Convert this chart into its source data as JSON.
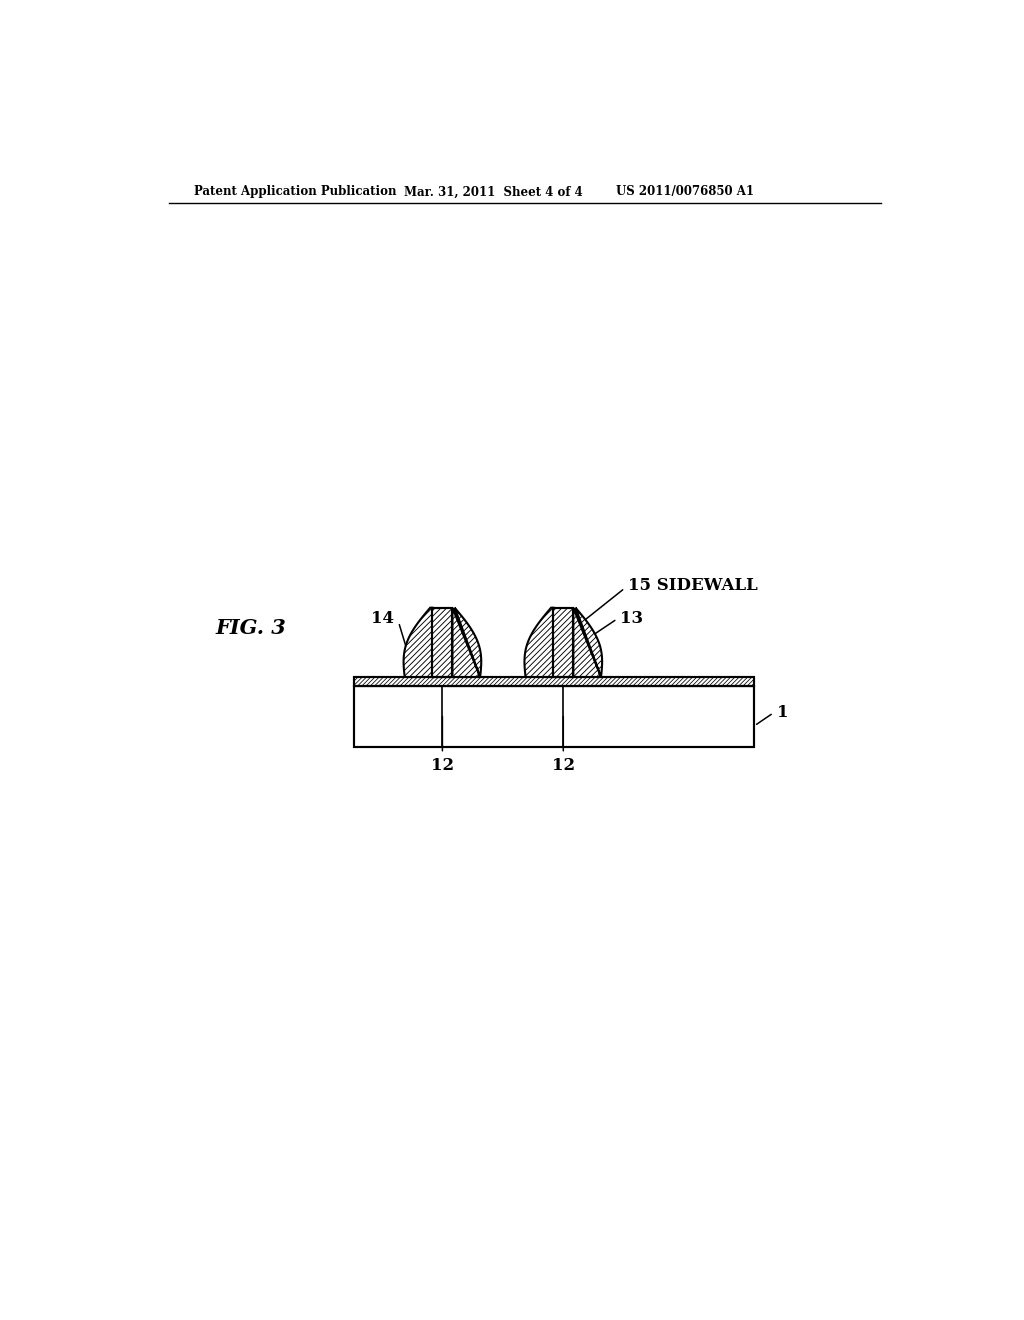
{
  "header_left": "Patent Application Publication",
  "header_center": "Mar. 31, 2011  Sheet 4 of 4",
  "header_right": "US 2011/0076850 A1",
  "fig_label": "FIG. 3",
  "label_1": "1",
  "label_12a": "12",
  "label_12b": "12",
  "label_13": "13",
  "label_14": "14",
  "label_15": "15 SIDEWALL",
  "bg_color": "#ffffff",
  "line_color": "#000000"
}
